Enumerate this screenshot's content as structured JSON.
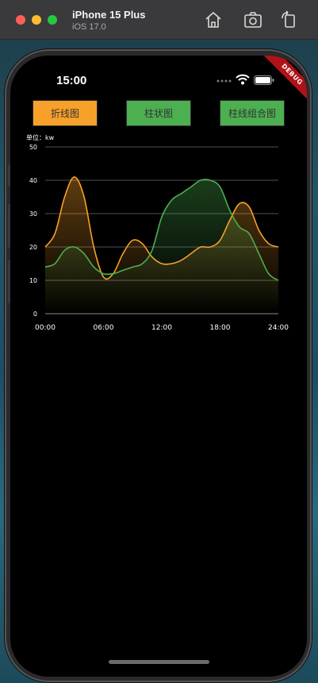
{
  "simulator": {
    "device_name": "iPhone 15 Plus",
    "os_version": "iOS 17.0",
    "icons": [
      "home-icon",
      "screenshot-icon",
      "rotate-icon"
    ]
  },
  "status_bar": {
    "time": "15:00",
    "icons": [
      "signal-icon",
      "wifi-icon",
      "battery-icon"
    ]
  },
  "debug_banner": "DEBUG",
  "buttons": {
    "line_chart": "折线图",
    "bar_chart": "柱状图",
    "combo_chart": "柱线组合图"
  },
  "colors": {
    "line_button": "#f7a02a",
    "bar_button": "#4caf50",
    "orange_series": "#f7a02a",
    "green_series": "#4caf50"
  },
  "unit_label": "单位：kw",
  "chart_data": {
    "type": "area",
    "x": [
      "00:00",
      "01:00",
      "02:00",
      "03:00",
      "04:00",
      "05:00",
      "06:00",
      "07:00",
      "08:00",
      "09:00",
      "10:00",
      "11:00",
      "12:00",
      "13:00",
      "14:00",
      "15:00",
      "16:00",
      "17:00",
      "18:00",
      "19:00",
      "20:00",
      "21:00",
      "22:00",
      "23:00",
      "24:00"
    ],
    "series": [
      {
        "color": "#f7a02a",
        "values": [
          20,
          24,
          35,
          41,
          35,
          20,
          11,
          12,
          18,
          22,
          21,
          17,
          15,
          15,
          16,
          18,
          20,
          20,
          22,
          28,
          33,
          32,
          25,
          21,
          20
        ]
      },
      {
        "color": "#4caf50",
        "values": [
          14,
          15,
          19,
          20,
          18,
          14,
          12,
          12,
          13,
          14,
          15,
          19,
          29,
          34,
          36,
          38,
          40,
          40,
          38,
          31,
          26,
          24,
          18,
          12,
          10
        ]
      }
    ],
    "x_ticks": [
      "00:00",
      "06:00",
      "12:00",
      "18:00",
      "24:00"
    ],
    "y_ticks": [
      "0",
      "10",
      "20",
      "30",
      "40",
      "50"
    ],
    "ylim": [
      0,
      50
    ],
    "grid": true
  }
}
